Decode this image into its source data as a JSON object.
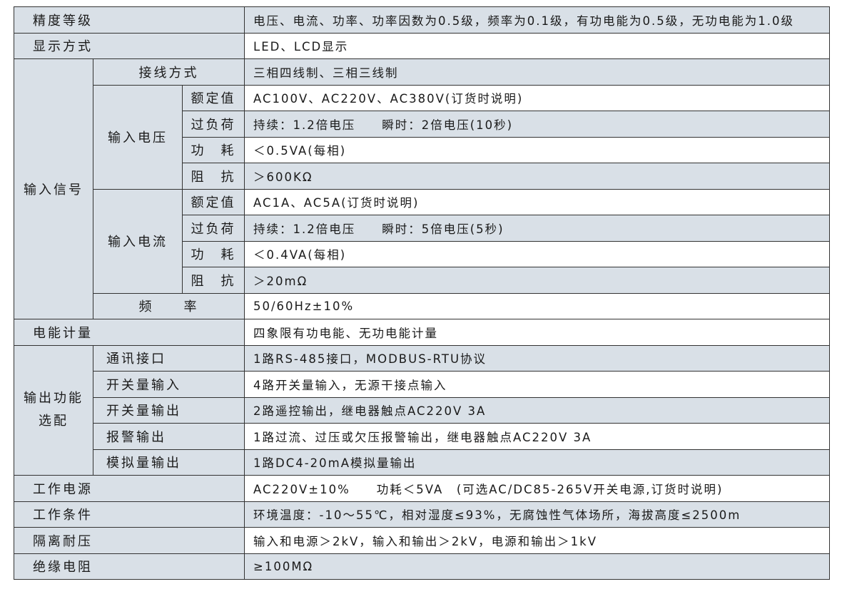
{
  "accuracy": {
    "label": "精度等级",
    "value": "电压、电流、功率、功率因数为0.5级，频率为0.1级，有功电能为0.5级，无功电能为1.0级"
  },
  "display": {
    "label": "显示方式",
    "value": "LED、LCD显示"
  },
  "input_signal": {
    "label": "输入信号",
    "wiring": {
      "label": "接线方式",
      "value": "三相四线制、三相三线制"
    },
    "voltage": {
      "label": "输入电压",
      "rows": [
        {
          "label": "额定值",
          "value": "AC100V、AC220V、AC380V(订货时说明)"
        },
        {
          "label": "过负荷",
          "value": "持续：1.2倍电压　　瞬时：2倍电压(10秒)"
        },
        {
          "label": "功　耗",
          "value": "＜0.5VA(每相)"
        },
        {
          "label": "阻　抗",
          "value": "＞600KΩ"
        }
      ]
    },
    "current": {
      "label": "输入电流",
      "rows": [
        {
          "label": "额定值",
          "value": "AC1A、AC5A(订货时说明)"
        },
        {
          "label": "过负荷",
          "value": "持续：1.2倍电压　　瞬时：5倍电压(5秒)"
        },
        {
          "label": "功　耗",
          "value": "＜0.4VA(每相)"
        },
        {
          "label": "阻　抗",
          "value": "＞20mΩ"
        }
      ]
    },
    "frequency": {
      "label": "频　　率",
      "value": "50/60Hz±10%"
    }
  },
  "energy": {
    "label": "电能计量",
    "value": "四象限有功电能、无功电能计量"
  },
  "output": {
    "label_line1": "输出功能",
    "label_line2": "选配",
    "rows": [
      {
        "label": "通讯接口",
        "value": "1路RS-485接口，MODBUS-RTU协议"
      },
      {
        "label": "开关量输入",
        "value": "4路开关量输入，无源干接点输入"
      },
      {
        "label": "开关量输出",
        "value": "2路遥控输出，继电器触点AC220V 3A"
      },
      {
        "label": "报警输出",
        "value": "1路过流、过压或欠压报警输出，继电器触点AC220V 3A"
      },
      {
        "label": "模拟量输出",
        "value": "1路DC4-20mA模拟量输出"
      }
    ]
  },
  "power_supply": {
    "label": "工作电源",
    "value": "AC220V±10%　　功耗＜5VA　(可选AC/DC85-265V开关电源,订货时说明)"
  },
  "conditions": {
    "label": "工作条件",
    "value": "环境温度：-10～55℃，相对湿度≤93%，无腐蚀性气体场所，海拔高度≤2500m"
  },
  "isolation": {
    "label": "隔离耐压",
    "value": "输入和电源＞2kV，输入和输出＞2kV，电源和输出＞1kV"
  },
  "insulation": {
    "label": "绝缘电阻",
    "value": "≥100MΩ"
  },
  "colors": {
    "shade": "#d9e0e7",
    "border": "#333333"
  }
}
